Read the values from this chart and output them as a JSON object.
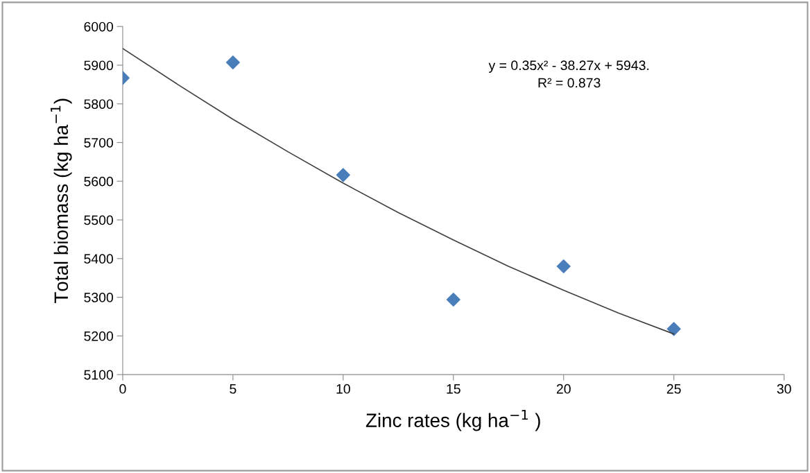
{
  "chart_data": {
    "type": "scatter",
    "xlabel": "Zinc rates (kg ha$^{−1}$ )",
    "ylabel": "Total biomass (kg ha$^{−1}$)",
    "x": [
      0,
      5,
      10,
      15,
      20,
      25
    ],
    "series": [
      {
        "color": "#4a7ebb",
        "marker": "diamond",
        "values": [
          5867,
          5907,
          5616,
          5294,
          5380,
          5218
        ]
      },
      {
        "type": "line",
        "color": "#404040",
        "marker": "none",
        "x": [
          0,
          2.5,
          5,
          7.5,
          10,
          12.5,
          15,
          17.5,
          20,
          22.5,
          25
        ],
        "values": [
          5943,
          5850,
          5760,
          5676,
          5595,
          5519,
          5448,
          5380,
          5318,
          5259,
          5205
        ]
      }
    ],
    "annotations": [
      "y = 0.35x² - 38.27x + 5943.\nR² = 0.873"
    ],
    "xlim": [
      0,
      30
    ],
    "xticks": [
      0,
      5,
      10,
      15,
      20,
      25,
      30
    ],
    "ylim": [
      5100,
      6000
    ],
    "yticks": [
      5100,
      5200,
      5300,
      5400,
      5500,
      5600,
      5700,
      5800,
      5900,
      6000
    ],
    "grid": false,
    "legend": false
  }
}
